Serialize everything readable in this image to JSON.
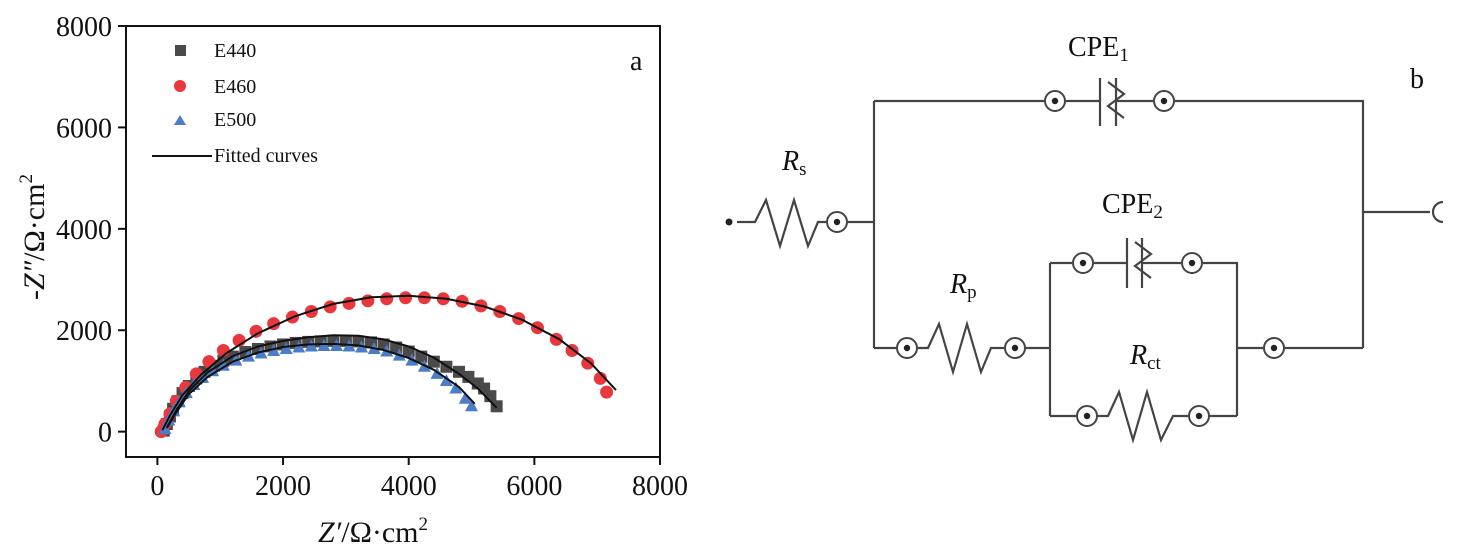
{
  "chart_data": {
    "type": "scatter",
    "panel_label": "a",
    "xlabel": {
      "var": "Z′",
      "unit": "/Ω·cm",
      "exp": "2"
    },
    "ylabel": {
      "var": "-Z″",
      "unit": "/Ω·cm",
      "exp": "2"
    },
    "xlim": [
      -500,
      8000
    ],
    "ylim": [
      -500,
      8000
    ],
    "xticks": [
      0,
      2000,
      4000,
      6000,
      8000
    ],
    "yticks": [
      0,
      2000,
      4000,
      6000,
      8000
    ],
    "legend_position": "top-left",
    "fit_label": "Fitted curves",
    "series": [
      {
        "name": "E440",
        "marker": "square",
        "color": "#4a4a4a",
        "x": [
          100,
          150,
          200,
          250,
          320,
          400,
          500,
          620,
          750,
          900,
          1050,
          1200,
          1400,
          1600,
          1800,
          2000,
          2200,
          2400,
          2600,
          2800,
          3000,
          3200,
          3400,
          3600,
          3800,
          4000,
          4200,
          4400,
          4600,
          4800,
          4950,
          5100,
          5200,
          5300,
          5400
        ],
        "y": [
          20,
          150,
          300,
          450,
          600,
          760,
          900,
          1050,
          1180,
          1300,
          1400,
          1480,
          1570,
          1630,
          1680,
          1720,
          1750,
          1770,
          1780,
          1790,
          1790,
          1780,
          1760,
          1720,
          1660,
          1580,
          1480,
          1380,
          1280,
          1180,
          1080,
          950,
          850,
          700,
          500
        ]
      },
      {
        "name": "E460",
        "marker": "circle",
        "color": "#e8383d",
        "x": [
          60,
          120,
          200,
          300,
          450,
          620,
          820,
          1050,
          1300,
          1570,
          1850,
          2150,
          2450,
          2750,
          3050,
          3350,
          3650,
          3950,
          4250,
          4550,
          4850,
          5150,
          5450,
          5750,
          6050,
          6350,
          6600,
          6850,
          7050,
          7150
        ],
        "y": [
          0,
          150,
          350,
          600,
          870,
          1140,
          1380,
          1600,
          1800,
          1980,
          2130,
          2260,
          2370,
          2460,
          2530,
          2580,
          2620,
          2640,
          2640,
          2620,
          2570,
          2480,
          2370,
          2230,
          2050,
          1820,
          1600,
          1350,
          1050,
          780
        ]
      },
      {
        "name": "E500",
        "marker": "triangle",
        "color": "#4d7cc7",
        "x": [
          120,
          180,
          260,
          350,
          460,
          580,
          720,
          880,
          1050,
          1250,
          1450,
          1650,
          1850,
          2050,
          2250,
          2450,
          2650,
          2850,
          3050,
          3250,
          3450,
          3650,
          3850,
          4050,
          4250,
          4450,
          4600,
          4750,
          4900,
          5000
        ],
        "y": [
          50,
          220,
          400,
          580,
          760,
          920,
          1060,
          1190,
          1300,
          1400,
          1480,
          1540,
          1590,
          1630,
          1660,
          1680,
          1690,
          1690,
          1680,
          1660,
          1630,
          1580,
          1500,
          1400,
          1280,
          1140,
          1000,
          850,
          650,
          500
        ]
      }
    ],
    "fits": [
      {
        "of": "E440",
        "x": [
          150,
          300,
          500,
          800,
          1200,
          1600,
          2000,
          2400,
          2800,
          3200,
          3600,
          4000,
          4400,
          4800,
          5100,
          5400
        ],
        "y": [
          80,
          420,
          800,
          1170,
          1490,
          1680,
          1790,
          1860,
          1900,
          1890,
          1820,
          1680,
          1460,
          1140,
          850,
          470
        ]
      },
      {
        "of": "E460",
        "x": [
          80,
          200,
          400,
          700,
          1100,
          1600,
          2200,
          2800,
          3400,
          4000,
          4600,
          5200,
          5800,
          6400,
          6900,
          7300
        ],
        "y": [
          30,
          320,
          720,
          1130,
          1550,
          1940,
          2280,
          2520,
          2650,
          2680,
          2620,
          2470,
          2210,
          1820,
          1350,
          820
        ]
      },
      {
        "of": "E500",
        "x": [
          150,
          300,
          500,
          800,
          1200,
          1600,
          2000,
          2400,
          2800,
          3200,
          3600,
          4000,
          4400,
          4800,
          5050
        ],
        "y": [
          70,
          380,
          740,
          1080,
          1380,
          1560,
          1670,
          1720,
          1730,
          1700,
          1610,
          1450,
          1220,
          880,
          550
        ]
      }
    ]
  },
  "circuit": {
    "panel_label": "b",
    "components": {
      "rs": {
        "sym": "R",
        "sub": "s"
      },
      "rp": {
        "sym": "R",
        "sub": "p"
      },
      "rct": {
        "sym": "R",
        "sub": "ct"
      },
      "cpe1": {
        "sym": "CPE",
        "sub": "1"
      },
      "cpe2": {
        "sym": "CPE",
        "sub": "2"
      }
    }
  }
}
